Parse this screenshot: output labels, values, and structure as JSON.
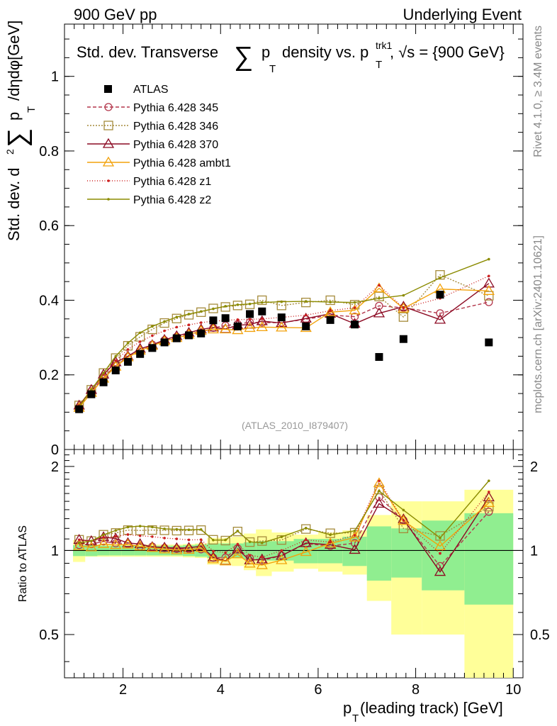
{
  "header": {
    "left": "900 GeV pp",
    "right": "Underlying Event",
    "title_parts": [
      "Std. dev. Transverse",
      "∑",
      "p",
      "T",
      "density vs. p",
      "trk1",
      "T",
      ", √s = {900 GeV}"
    ],
    "side_top": "Rivet 4.1.0, ≥ 3.4M events",
    "side_bottom": "mcplots.cern.ch [arXiv:2401.10621]",
    "analysis": "(ATLAS_2010_I879407)"
  },
  "chart_data": {
    "type": "scatter",
    "title": "Std. dev. Transverse ∑pT density vs. pT trk1, √s = {900 GeV}",
    "ylabel_parts": [
      "Std. dev. d",
      "2",
      "∑",
      "p",
      "T",
      "/dηdφ[GeV]"
    ],
    "ratio_ylabel": "Ratio to ATLAS",
    "xlabel": "p",
    "xlabel_sub": "T",
    "xlabel_rest": " (leading track) [GeV]",
    "xlim": [
      0.8,
      10.2
    ],
    "ylim": [
      0,
      1.14
    ],
    "ratio_ylim": [
      0.35,
      2.3
    ],
    "xticks": [
      2,
      4,
      6,
      8,
      10
    ],
    "xtick_labels": [
      "2",
      "4",
      "6",
      "8",
      "10"
    ],
    "yticks": [
      0,
      0.2,
      0.4,
      0.6,
      0.8,
      1
    ],
    "ytick_labels": [
      "0",
      "0.2",
      "0.4",
      "0.6",
      "0.8",
      "1"
    ],
    "ratio_yticks": [
      0.5,
      1,
      2
    ],
    "ratio_ytick_labels": [
      "0.5",
      "1",
      "2"
    ],
    "ratio_ytick_labels_right": [
      "0.5",
      "1",
      "2"
    ],
    "x": [
      1.1,
      1.35,
      1.6,
      1.85,
      2.1,
      2.35,
      2.6,
      2.85,
      3.1,
      3.35,
      3.6,
      3.85,
      4.1,
      4.35,
      4.6,
      4.85,
      5.25,
      5.75,
      6.25,
      6.75,
      7.25,
      7.75,
      8.5,
      9.5
    ],
    "data": {
      "name": "ATLAS",
      "values": [
        0.108,
        0.148,
        0.18,
        0.212,
        0.235,
        0.256,
        0.272,
        0.287,
        0.298,
        0.306,
        0.311,
        0.346,
        0.352,
        0.33,
        0.363,
        0.37,
        0.354,
        0.33,
        0.347,
        0.335,
        0.248,
        0.296,
        0.415,
        0.287
      ],
      "band_inner": [
        0.045,
        0.045,
        0.04,
        0.04,
        0.04,
        0.04,
        0.04,
        0.04,
        0.04,
        0.045,
        0.05,
        0.06,
        0.06,
        0.06,
        0.07,
        0.08,
        0.08,
        0.1,
        0.1,
        0.12,
        0.22,
        0.2,
        0.28,
        0.36
      ],
      "band_outer": [
        0.09,
        0.05,
        0.05,
        0.05,
        0.05,
        0.05,
        0.05,
        0.05,
        0.05,
        0.055,
        0.06,
        0.11,
        0.11,
        0.12,
        0.15,
        0.19,
        0.16,
        0.14,
        0.16,
        0.18,
        0.34,
        0.5,
        0.5,
        0.65
      ]
    },
    "legend": [
      {
        "label": "ATLAS"
      },
      {
        "label": "Pythia 6.428 345"
      },
      {
        "label": "Pythia 6.428 346"
      },
      {
        "label": "Pythia 6.428 370"
      },
      {
        "label": "Pythia 6.428 ambt1"
      },
      {
        "label": "Pythia 6.428 z1"
      },
      {
        "label": "Pythia 6.428 z2"
      }
    ],
    "series": [
      {
        "name": "Pythia 6.428 345",
        "color": "#b3364b",
        "dash": "5,3",
        "marker": "circle",
        "values": [
          0.113,
          0.156,
          0.194,
          0.225,
          0.248,
          0.265,
          0.281,
          0.293,
          0.302,
          0.31,
          0.314,
          0.326,
          0.332,
          0.336,
          0.341,
          0.34,
          0.34,
          0.349,
          0.36,
          0.356,
          0.385,
          0.38,
          0.365,
          0.395
        ]
      },
      {
        "name": "Pythia 6.428 346",
        "color": "#a58b3b",
        "dash": "2,2",
        "marker": "square",
        "values": [
          0.118,
          0.16,
          0.205,
          0.245,
          0.278,
          0.302,
          0.322,
          0.339,
          0.351,
          0.361,
          0.368,
          0.378,
          0.382,
          0.386,
          0.389,
          0.4,
          0.386,
          0.394,
          0.4,
          0.388,
          0.41,
          0.355,
          0.468,
          0.412
        ]
      },
      {
        "name": "Pythia 6.428 370",
        "color": "#8c0a23",
        "dash": "",
        "marker": "triangle",
        "values": [
          0.118,
          0.16,
          0.201,
          0.234,
          0.25,
          0.27,
          0.28,
          0.294,
          0.304,
          0.313,
          0.322,
          0.327,
          0.323,
          0.333,
          0.335,
          0.344,
          0.339,
          0.351,
          0.364,
          0.337,
          0.365,
          0.383,
          0.348,
          0.445
        ]
      },
      {
        "name": "Pythia 6.428 ambt1",
        "color": "#f2a20c",
        "dash": "",
        "marker": "triangle",
        "values": [
          0.112,
          0.152,
          0.19,
          0.222,
          0.247,
          0.265,
          0.278,
          0.29,
          0.299,
          0.308,
          0.318,
          0.322,
          0.322,
          0.32,
          0.326,
          0.328,
          0.327,
          0.326,
          0.368,
          0.373,
          0.432,
          0.378,
          0.43,
          0.425
        ]
      },
      {
        "name": "Pythia 6.428 z1",
        "color": "#cc1f1f",
        "dash": "1,2.5",
        "marker": "dot",
        "values": [
          0.118,
          0.16,
          0.201,
          0.238,
          0.268,
          0.289,
          0.305,
          0.318,
          0.328,
          0.334,
          0.34,
          0.344,
          0.346,
          0.348,
          0.349,
          0.35,
          0.354,
          0.36,
          0.372,
          0.38,
          0.44,
          0.379,
          0.405,
          0.465
        ]
      },
      {
        "name": "Pythia 6.428 z2",
        "color": "#8b8b00",
        "dash": "",
        "marker": "dot",
        "values": [
          0.115,
          0.16,
          0.205,
          0.25,
          0.285,
          0.313,
          0.33,
          0.343,
          0.355,
          0.363,
          0.37,
          0.377,
          0.384,
          0.388,
          0.39,
          0.394,
          0.396,
          0.397,
          0.395,
          0.394,
          0.405,
          0.413,
          0.46,
          0.51
        ]
      }
    ]
  }
}
